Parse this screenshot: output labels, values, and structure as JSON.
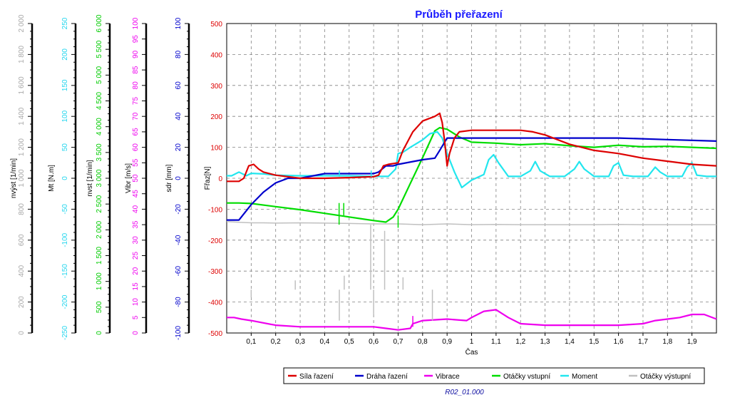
{
  "colors": {
    "red": "#dd0000",
    "blue": "#0000cc",
    "magenta": "#ee00ee",
    "green": "#00dd00",
    "cyan": "#22e6ee",
    "gray": "#c0c0c0",
    "navy": "#0a0aa0",
    "title": "#1a1aff",
    "grid": "#808080"
  },
  "chart_data": {
    "type": "line",
    "title": "Průběh přeřazení",
    "footer": "R02_01.000",
    "xlabel": "Čas",
    "xlim": [
      0,
      2
    ],
    "xticks": [
      "0,1",
      "0,2",
      "0,3",
      "0,4",
      "0,5",
      "0,6",
      "0,7",
      "0,8",
      "0,9",
      "1",
      "1,1",
      "1,2",
      "1,3",
      "1,4",
      "1,5",
      "1,6",
      "1,7",
      "1,8",
      "1,9"
    ],
    "axes": [
      {
        "id": "nvyst",
        "label": "nvýst [1/min]",
        "color": "#a8a8a8",
        "range": [
          0,
          2000
        ],
        "ticks": [
          "0",
          "200",
          "400",
          "600",
          "800",
          "1 000",
          "1 200",
          "1 400",
          "1 600",
          "1 800",
          "2 000"
        ]
      },
      {
        "id": "mt",
        "label": "Mt [N.m]",
        "color": "#22d6ee",
        "range": [
          -250,
          250
        ],
        "ticks": [
          "-250",
          "-200",
          "-150",
          "-100",
          "-50",
          "0",
          "50",
          "100",
          "150",
          "200",
          "250"
        ]
      },
      {
        "id": "nvst",
        "label": "nvst [1/min]",
        "color": "#00cc00",
        "range": [
          0,
          6000
        ],
        "ticks": [
          "0",
          "500",
          "1 000",
          "1 500",
          "2 000",
          "2 500",
          "3 000",
          "3 500",
          "4 000",
          "4 500",
          "5 000",
          "5 500",
          "6 000"
        ]
      },
      {
        "id": "vibr",
        "label": "Vibr [m/s]",
        "color": "#ee00ee",
        "range": [
          0,
          100
        ],
        "ticks": [
          "0",
          "5",
          "10",
          "15",
          "20",
          "25",
          "30",
          "35",
          "40",
          "45",
          "50",
          "55",
          "60",
          "65",
          "70",
          "75",
          "80",
          "85",
          "90",
          "95",
          "100"
        ]
      },
      {
        "id": "sdr",
        "label": "sdr [mm]",
        "color": "#0000cc",
        "range": [
          -100,
          100
        ],
        "ticks": [
          "-100",
          "-80",
          "-60",
          "-40",
          "-20",
          "0",
          "20",
          "40",
          "60",
          "80",
          "100"
        ]
      },
      {
        "id": "fraz",
        "label": "Fřaz[N]",
        "color": "#dd0000",
        "range": [
          -500,
          500
        ],
        "ticks": [
          "-500",
          "-400",
          "-300",
          "-200",
          "-100",
          "0",
          "100",
          "200",
          "300",
          "400",
          "500"
        ]
      }
    ],
    "legend": [
      "Síla řazení",
      "Dráha řazení",
      "Vibrace",
      "Otáčky vstupní",
      "Moment",
      "Otáčky výstupní"
    ],
    "series": [
      {
        "name": "Síla řazení",
        "axis": "fraz",
        "color": "#dd0000",
        "x": [
          0,
          0.05,
          0.07,
          0.09,
          0.11,
          0.13,
          0.15,
          0.2,
          0.25,
          0.3,
          0.4,
          0.5,
          0.6,
          0.62,
          0.64,
          0.66,
          0.7,
          0.72,
          0.76,
          0.8,
          0.85,
          0.87,
          0.88,
          0.89,
          0.9,
          0.91,
          0.93,
          0.95,
          1.0,
          1.1,
          1.2,
          1.25,
          1.3,
          1.4,
          1.5,
          1.6,
          1.7,
          1.8,
          1.9,
          2.0
        ],
        "y": [
          -10,
          -10,
          0,
          40,
          45,
          30,
          20,
          10,
          5,
          0,
          0,
          2,
          5,
          10,
          40,
          45,
          50,
          90,
          150,
          185,
          200,
          210,
          180,
          120,
          40,
          80,
          130,
          150,
          155,
          155,
          155,
          150,
          140,
          110,
          90,
          80,
          65,
          55,
          45,
          40
        ]
      },
      {
        "name": "Dráha řazení",
        "axis": "sdr",
        "color": "#0000cc",
        "x": [
          0,
          0.05,
          0.1,
          0.15,
          0.2,
          0.25,
          0.3,
          0.4,
          0.5,
          0.6,
          0.62,
          0.65,
          0.68,
          0.7,
          0.8,
          0.85,
          0.87,
          0.9,
          1.0,
          1.2,
          1.4,
          1.6,
          1.8,
          2.0
        ],
        "y": [
          -27,
          -27,
          -17,
          -9,
          -3,
          0,
          0,
          3,
          3,
          3,
          4,
          8,
          8,
          9,
          12,
          13,
          18,
          26,
          26,
          26,
          26,
          26,
          25,
          24
        ]
      },
      {
        "name": "Vibrace",
        "axis": "vibr",
        "color": "#ee00ee",
        "x": [
          0,
          0.03,
          0.06,
          0.1,
          0.2,
          0.3,
          0.4,
          0.5,
          0.6,
          0.65,
          0.7,
          0.75,
          0.76,
          0.8,
          0.9,
          0.98,
          1.0,
          1.05,
          1.1,
          1.15,
          1.2,
          1.3,
          1.4,
          1.5,
          1.6,
          1.7,
          1.75,
          1.8,
          1.85,
          1.9,
          1.95,
          2.0
        ],
        "y": [
          5,
          5,
          4.5,
          4,
          2.5,
          2,
          2,
          2,
          2,
          1.5,
          1,
          1.5,
          3,
          4,
          4.5,
          4,
          5,
          7,
          7.5,
          5,
          3,
          2.5,
          2.5,
          2.5,
          2.5,
          3,
          4,
          4.5,
          5,
          6,
          6,
          4.5
        ]
      },
      {
        "name": "Otáčky vstupní",
        "axis": "nvst",
        "color": "#00dd00",
        "x": [
          0,
          0.05,
          0.1,
          0.2,
          0.3,
          0.4,
          0.5,
          0.6,
          0.65,
          0.68,
          0.7,
          0.75,
          0.8,
          0.85,
          0.87,
          0.9,
          0.95,
          1.0,
          1.1,
          1.2,
          1.3,
          1.4,
          1.5,
          1.6,
          1.7,
          1.8,
          1.9,
          2.0
        ],
        "y": [
          2520,
          2520,
          2510,
          2450,
          2390,
          2320,
          2250,
          2180,
          2150,
          2250,
          2400,
          2900,
          3400,
          3920,
          3980,
          3950,
          3800,
          3700,
          3680,
          3650,
          3670,
          3630,
          3600,
          3640,
          3610,
          3620,
          3600,
          3580
        ]
      },
      {
        "name": "Moment",
        "axis": "mt",
        "color": "#22e6ee",
        "x": [
          0,
          0.02,
          0.05,
          0.08,
          0.1,
          0.15,
          0.2,
          0.3,
          0.4,
          0.5,
          0.6,
          0.66,
          0.69,
          0.7,
          0.72,
          0.75,
          0.8,
          0.83,
          0.86,
          0.88,
          0.9,
          0.93,
          0.96,
          1.0,
          1.05,
          1.07,
          1.09,
          1.11,
          1.15,
          1.2,
          1.24,
          1.26,
          1.28,
          1.32,
          1.38,
          1.42,
          1.44,
          1.46,
          1.5,
          1.56,
          1.58,
          1.6,
          1.62,
          1.66,
          1.72,
          1.75,
          1.77,
          1.8,
          1.86,
          1.88,
          1.9,
          1.92,
          1.96,
          2.0
        ],
        "y": [
          4,
          4,
          10,
          4,
          8,
          7,
          5,
          4,
          4,
          4,
          3,
          3,
          15,
          40,
          42,
          50,
          62,
          72,
          75,
          65,
          40,
          10,
          -15,
          -3,
          6,
          30,
          38,
          25,
          3,
          3,
          12,
          27,
          12,
          3,
          3,
          15,
          27,
          15,
          3,
          3,
          20,
          25,
          5,
          3,
          3,
          18,
          10,
          3,
          3,
          18,
          25,
          5,
          3,
          3
        ]
      },
      {
        "name": "Otáčky výstupní",
        "axis": "nvyst",
        "color": "#c0c0c0",
        "x": [
          0,
          0.05,
          0.1,
          0.15,
          0.2,
          0.3,
          0.4,
          0.5,
          0.6,
          0.7,
          0.8,
          0.9,
          1.0,
          1.1,
          1.2,
          1.3,
          1.4,
          1.5,
          1.6,
          1.7,
          1.8,
          1.9,
          2.0
        ],
        "y": [
          720,
          715,
          712,
          712,
          710,
          712,
          710,
          708,
          705,
          705,
          700,
          705,
          700,
          702,
          700,
          700,
          700,
          700,
          702,
          700,
          700,
          700,
          700
        ]
      }
    ],
    "spikes": [
      {
        "axis": "fraz",
        "color": "#00dd00",
        "x": 0.459,
        "from": -80,
        "to": -150
      },
      {
        "axis": "fraz",
        "color": "#00dd00",
        "x": 0.478,
        "from": -80,
        "to": -120
      },
      {
        "axis": "fraz",
        "color": "#00dd00",
        "x": 0.7,
        "from": -120,
        "to": -160
      },
      {
        "axis": "fraz",
        "color": "#22e6ee",
        "x": 0.46,
        "from": 5,
        "to": 25
      },
      {
        "axis": "fraz",
        "color": "#22e6ee",
        "x": 0.59,
        "from": 5,
        "to": 25
      },
      {
        "axis": "fraz",
        "color": "#c0c0c0",
        "x": 0.588,
        "from": -360,
        "to": -150
      },
      {
        "axis": "fraz",
        "color": "#c0c0c0",
        "x": 0.645,
        "from": -360,
        "to": -170
      },
      {
        "axis": "fraz",
        "color": "#c0c0c0",
        "x": 0.6,
        "from": -360,
        "to": -440
      },
      {
        "axis": "fraz",
        "color": "#c0c0c0",
        "x": 0.46,
        "from": -360,
        "to": -460
      },
      {
        "axis": "fraz",
        "color": "#c0c0c0",
        "x": 0.84,
        "from": -360,
        "to": -460
      },
      {
        "axis": "fraz",
        "color": "#c0c0c0",
        "x": 0.48,
        "from": -360,
        "to": -315
      },
      {
        "axis": "fraz",
        "color": "#c0c0c0",
        "x": 0.72,
        "from": -360,
        "to": -320
      },
      {
        "axis": "fraz",
        "color": "#c0c0c0",
        "x": 0.1,
        "from": -360,
        "to": -385
      },
      {
        "axis": "fraz",
        "color": "#c0c0c0",
        "x": 0.28,
        "from": -360,
        "to": -330
      },
      {
        "axis": "fraz",
        "color": "#ee00ee",
        "x": 0.76,
        "from": -480,
        "to": -445
      }
    ]
  }
}
